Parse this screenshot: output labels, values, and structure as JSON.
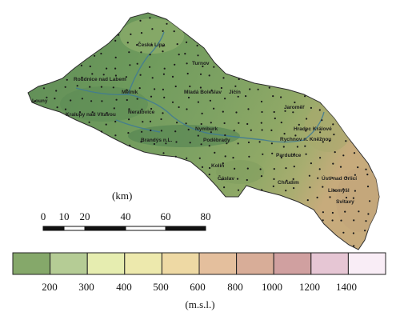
{
  "map": {
    "towns": [
      {
        "name": "Česká Lípa"
      },
      {
        "name": "Turnov"
      },
      {
        "name": "Roudnice nad Labem"
      },
      {
        "name": "Mělník"
      },
      {
        "name": "Mladá Boleslav"
      },
      {
        "name": "Jičín"
      },
      {
        "name": "Louny"
      },
      {
        "name": "Neratovice"
      },
      {
        "name": "Kralupy nad Vltavou"
      },
      {
        "name": "Jaroměř"
      },
      {
        "name": "Nymburk"
      },
      {
        "name": "Hradec Králové"
      },
      {
        "name": "Brandýs n.L."
      },
      {
        "name": "Poděbrady"
      },
      {
        "name": "Rychnov n. Kněžnou"
      },
      {
        "name": "Pardubice"
      },
      {
        "name": "Kolín"
      },
      {
        "name": "Čáslav"
      },
      {
        "name": "Ústí nad Orlicí"
      },
      {
        "name": "Chrudim"
      },
      {
        "name": "Litomyšl"
      },
      {
        "name": "Svitavy"
      }
    ],
    "colors": {
      "lowland": "#5f8f57",
      "midland": "#7da363",
      "upland": "#c9b587",
      "river": "#3f7a96"
    }
  },
  "scale_bar": {
    "unit_label": "(km)",
    "ticks": [
      "0",
      "10",
      "20",
      "40",
      "60",
      "80"
    ]
  },
  "legend": {
    "colors": [
      "#85a86a",
      "#b5cc95",
      "#e6edb0",
      "#ede9ad",
      "#eed9a4",
      "#e4bf9d",
      "#d8ad98",
      "#d0a0a0",
      "#e6c6d4",
      "#f9edf6"
    ],
    "labels": [
      "200",
      "300",
      "400",
      "500",
      "600",
      "800",
      "1000",
      "1200",
      "1400"
    ],
    "unit_label": "(m.s.l.)"
  }
}
